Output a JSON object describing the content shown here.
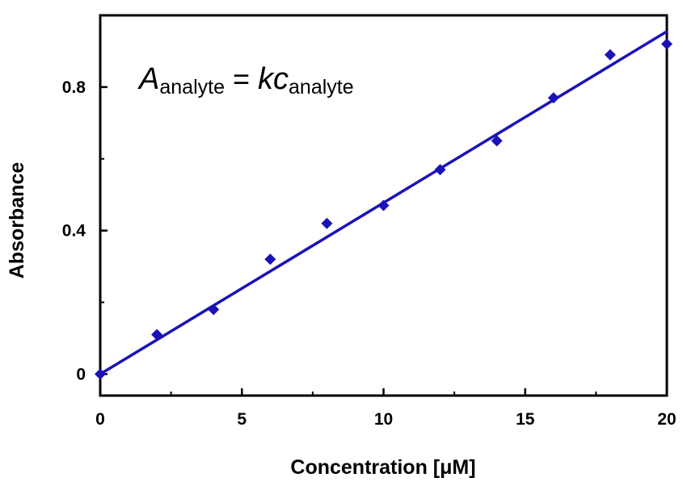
{
  "chart_data": {
    "type": "scatter",
    "xlabel": "Concentration [μM]",
    "ylabel": "Absorbance",
    "xlim": [
      0,
      20
    ],
    "ylim": [
      -0.06,
      1.0
    ],
    "x_ticks": [
      {
        "value": 0,
        "label": "0"
      },
      {
        "value": 5,
        "label": "5"
      },
      {
        "value": 10,
        "label": "10"
      },
      {
        "value": 15,
        "label": "15"
      },
      {
        "value": 20,
        "label": "20"
      }
    ],
    "y_ticks": [
      {
        "value": 0,
        "label": "0"
      },
      {
        "value": 0.4,
        "label": "0.4"
      },
      {
        "value": 0.8,
        "label": "0.8"
      }
    ],
    "x_minor_ticks": [
      2.5,
      7.5,
      12.5,
      17.5
    ],
    "y_minor_ticks": [
      0.2,
      0.6
    ],
    "grid": false,
    "marker_color": "#1a13b8",
    "line_color": "#1a13b8",
    "points": {
      "x": [
        0,
        2,
        4,
        6,
        8,
        10,
        12,
        14,
        16,
        18,
        20
      ],
      "y": [
        0.0,
        0.11,
        0.18,
        0.32,
        0.42,
        0.47,
        0.57,
        0.65,
        0.77,
        0.89,
        0.92
      ]
    },
    "fit_line": {
      "x": [
        0,
        20
      ],
      "y": [
        0.0,
        0.955
      ]
    },
    "equation": {
      "A": "A",
      "sub1": "analyte",
      "eq": " = ",
      "kc": "kc",
      "sub2": "analyte"
    }
  }
}
